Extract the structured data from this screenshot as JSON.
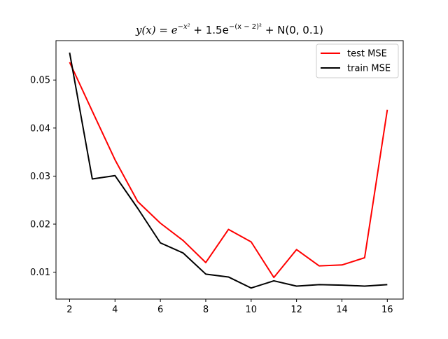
{
  "chart_data": {
    "type": "line",
    "title": {
      "lhs": "y(x) = e",
      "exp1": "−x²",
      "mid1": " + 1.5e",
      "exp2": "−(x − 2)²",
      "mid2": " + N(0, 0.1)"
    },
    "xlim": [
      1.4,
      16.7
    ],
    "ylim": [
      0.0044,
      0.0582
    ],
    "xticks": [
      2,
      4,
      6,
      8,
      10,
      12,
      14,
      16
    ],
    "yticks": [
      0.01,
      0.02,
      0.03,
      0.04,
      0.05
    ],
    "ytick_labels": [
      "0.01",
      "0.02",
      "0.03",
      "0.04",
      "0.05"
    ],
    "legend_position": "top-right",
    "x": [
      2,
      3,
      4,
      5,
      6,
      7,
      8,
      9,
      10,
      11,
      12,
      13,
      14,
      15,
      16
    ],
    "series": [
      {
        "name": "test MSE",
        "color": "#ff0000",
        "values": [
          0.0537,
          0.0435,
          0.0334,
          0.0247,
          0.0202,
          0.0166,
          0.012,
          0.0189,
          0.0163,
          0.0089,
          0.0147,
          0.0113,
          0.0115,
          0.013,
          0.0438
        ]
      },
      {
        "name": "train MSE",
        "color": "#000000",
        "values": [
          0.0557,
          0.0294,
          0.0301,
          0.0233,
          0.0161,
          0.014,
          0.0096,
          0.009,
          0.0067,
          0.0082,
          0.0071,
          0.0074,
          0.0073,
          0.0071,
          0.0074
        ]
      }
    ]
  }
}
